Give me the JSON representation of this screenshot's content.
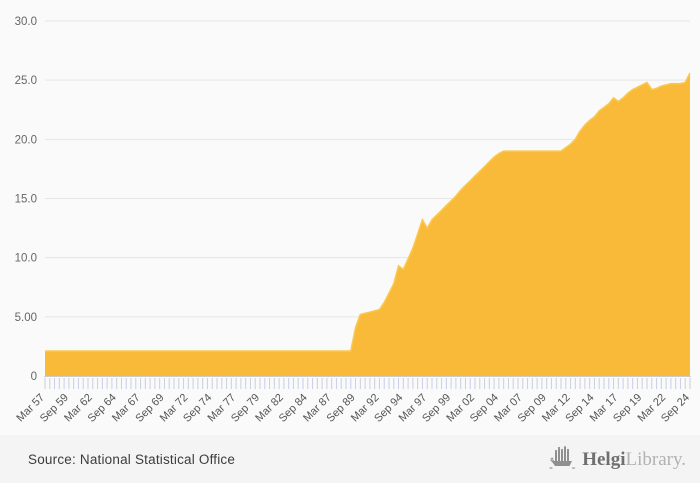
{
  "chart_data": {
    "type": "area",
    "title": "",
    "frequency": "semiannual",
    "x_first": "Mar 57",
    "x_last": "Sep 24",
    "x_label_every": 5,
    "x_tick_labels": [
      "Mar 57",
      "Sep 59",
      "Mar 62",
      "Sep 64",
      "Mar 67",
      "Sep 69",
      "Mar 72",
      "Sep 74",
      "Mar 77",
      "Sep 79",
      "Mar 82",
      "Sep 84",
      "Mar 87",
      "Sep 89",
      "Mar 92",
      "Sep 94",
      "Mar 97",
      "Sep 99",
      "Mar 02",
      "Sep 04",
      "Mar 07",
      "Sep 09",
      "Mar 12",
      "Sep 14",
      "Mar 17",
      "Sep 19",
      "Mar 22",
      "Sep 24"
    ],
    "y_tick_labels": [
      "30.0",
      "25.0",
      "20.0",
      "15.0",
      "10.0",
      "5.00",
      "0"
    ],
    "y_tick_values": [
      30,
      25,
      20,
      15,
      10,
      5,
      0
    ],
    "ylim": [
      0,
      30
    ],
    "grid": true,
    "legend": false,
    "values": [
      2.1,
      2.1,
      2.1,
      2.1,
      2.1,
      2.1,
      2.1,
      2.1,
      2.1,
      2.1,
      2.1,
      2.1,
      2.1,
      2.1,
      2.1,
      2.1,
      2.1,
      2.1,
      2.1,
      2.1,
      2.1,
      2.1,
      2.1,
      2.1,
      2.1,
      2.1,
      2.1,
      2.1,
      2.1,
      2.1,
      2.1,
      2.1,
      2.1,
      2.1,
      2.1,
      2.1,
      2.1,
      2.1,
      2.1,
      2.1,
      2.1,
      2.1,
      2.1,
      2.1,
      2.1,
      2.1,
      2.1,
      2.1,
      2.1,
      2.1,
      2.1,
      2.1,
      2.1,
      2.1,
      2.1,
      2.1,
      2.1,
      2.1,
      2.1,
      2.1,
      2.1,
      2.1,
      2.1,
      2.1,
      2.1,
      4.1,
      5.2,
      5.3,
      5.4,
      5.5,
      5.6,
      6.2,
      7.0,
      7.8,
      9.3,
      9.0,
      9.9,
      10.8,
      12.0,
      13.2,
      12.5,
      13.2,
      13.6,
      14.0,
      14.4,
      14.8,
      15.2,
      15.7,
      16.1,
      16.5,
      16.9,
      17.3,
      17.7,
      18.1,
      18.5,
      18.8,
      19.0,
      19.0,
      19.0,
      19.0,
      19.0,
      19.0,
      19.0,
      19.0,
      19.0,
      19.0,
      19.0,
      19.0,
      19.0,
      19.3,
      19.6,
      20.0,
      20.7,
      21.2,
      21.6,
      21.9,
      22.4,
      22.7,
      23.0,
      23.5,
      23.2,
      23.5,
      23.9,
      24.2,
      24.4,
      24.6,
      24.8,
      24.2,
      24.3,
      24.5,
      24.6,
      24.7,
      24.7,
      24.7,
      24.8,
      25.6
    ]
  },
  "style": {
    "area_fill": "#F8BA38",
    "area_stroke": "#FAC84E",
    "grid_color": "#e6e6e6",
    "axis_color": "#cccccc",
    "tick_color": "#c7cfe4",
    "y_label_color": "#666666",
    "x_label_color": "#555555",
    "background": "#fafafa",
    "footer_background": "#f4f4f5"
  },
  "footer": {
    "source": "Source: National Statistical Office",
    "logo_bold": "Helgi",
    "logo_light": "Library."
  }
}
